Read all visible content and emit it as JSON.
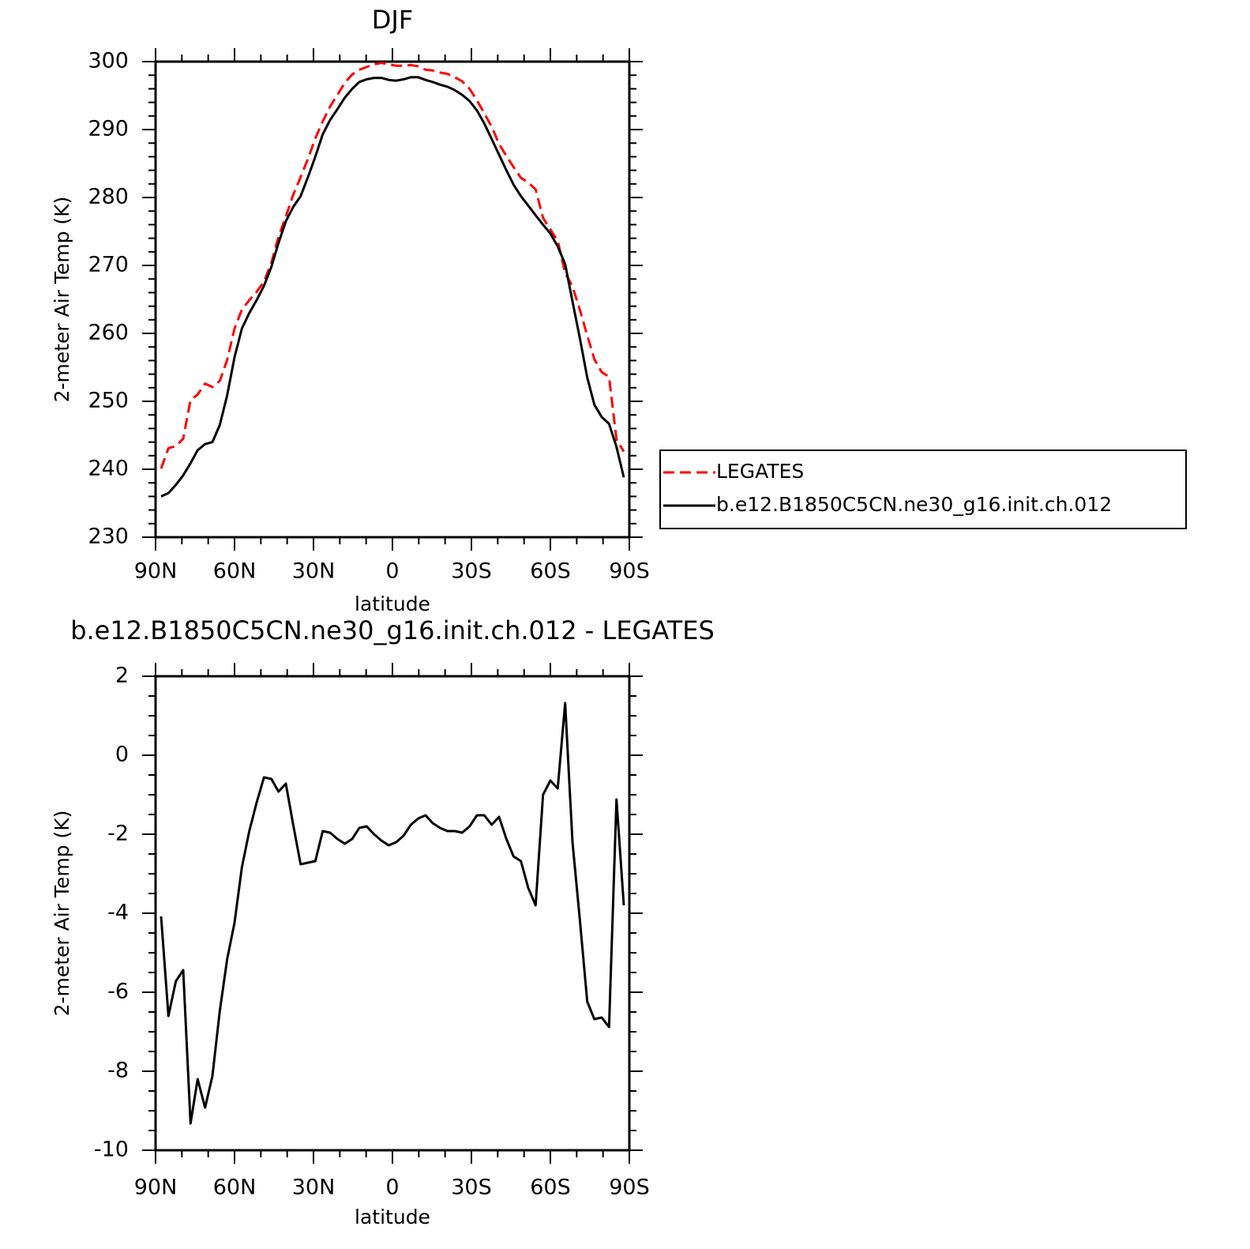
{
  "chart_data": [
    {
      "type": "line",
      "title": "DJF",
      "xlabel": "latitude",
      "ylabel": "2-meter Air Temp (K)",
      "x": [
        87.9,
        85.1,
        82.3,
        79.5,
        76.7,
        74,
        71.2,
        68.4,
        65.6,
        62.8,
        60,
        57.2,
        54.4,
        51.6,
        48.8,
        46,
        43.3,
        40.5,
        37.7,
        34.9,
        32.1,
        29.3,
        26.5,
        23.7,
        20.9,
        18.1,
        15.3,
        12.6,
        9.8,
        7,
        4.2,
        1.4,
        -1.4,
        -4.2,
        -7,
        -9.8,
        -12.6,
        -15.3,
        -18.1,
        -20.9,
        -23.7,
        -26.5,
        -29.3,
        -32.1,
        -34.9,
        -37.7,
        -40.5,
        -43.3,
        -46,
        -48.8,
        -51.6,
        -54.4,
        -57.2,
        -60,
        -62.8,
        -65.6,
        -68.4,
        -71.2,
        -74,
        -76.7,
        -79.5,
        -82.3,
        -85.1,
        -87.9
      ],
      "series": [
        {
          "name": "LEGATES",
          "color": "#ff0000",
          "dashed": true,
          "values": [
            240.1,
            243.1,
            243.4,
            244.5,
            250.2,
            251,
            252.6,
            252.1,
            253,
            256.1,
            260.7,
            263.5,
            264.9,
            266.1,
            267.6,
            270.4,
            274.2,
            277.2,
            280.4,
            283,
            285.7,
            288.7,
            291.2,
            293.4,
            295.1,
            296.9,
            298.1,
            298.8,
            299.2,
            299.6,
            299.8,
            299.6,
            299.4,
            299.4,
            299.5,
            299.3,
            298.8,
            298.7,
            298.4,
            298.2,
            297.7,
            297.1,
            296,
            294.3,
            292.4,
            290.4,
            287.9,
            286.1,
            284.5,
            282.9,
            282.2,
            281.2,
            277,
            275.3,
            273.6,
            268.9,
            266.9,
            263.5,
            259.7,
            256.2,
            254.3,
            253.6,
            244.4,
            242.6
          ]
        },
        {
          "name": "b.e12.B1850C5CN.ne30_g16.init.ch.012",
          "color": "#000000",
          "dashed": false,
          "values": [
            236,
            236.5,
            237.7,
            239.1,
            240.9,
            242.8,
            243.7,
            244,
            246.5,
            250.9,
            256.5,
            260.7,
            263,
            264.9,
            267,
            269.8,
            273.3,
            276.5,
            278.6,
            280.2,
            283,
            286,
            289.3,
            291.4,
            293,
            294.7,
            296,
            297,
            297.4,
            297.6,
            297.6,
            297.3,
            297.2,
            297.4,
            297.7,
            297.7,
            297.3,
            297,
            296.6,
            296.3,
            295.8,
            295.1,
            294.2,
            292.8,
            290.9,
            288.6,
            286.3,
            284,
            281.9,
            280.2,
            278.8,
            277.4,
            276,
            274.7,
            272.8,
            270.2,
            264.7,
            259.3,
            253.5,
            249.5,
            247.7,
            246.7,
            243.3,
            238.8
          ]
        }
      ],
      "xlim": [
        90,
        -90
      ],
      "xticks": [
        {
          "value": 90,
          "label": "90N"
        },
        {
          "value": 60,
          "label": "60N"
        },
        {
          "value": 30,
          "label": "30N"
        },
        0,
        {
          "value": -30,
          "label": "30S"
        },
        {
          "value": -60,
          "label": "60S"
        },
        {
          "value": -90,
          "label": "90S"
        }
      ],
      "ylim": [
        230,
        300
      ],
      "yticks": [
        230,
        240,
        250,
        260,
        270,
        280,
        290,
        300
      ],
      "legend": "right"
    },
    {
      "type": "line",
      "title": "b.e12.B1850C5CN.ne30_g16.init.ch.012 - LEGATES",
      "xlabel": "latitude",
      "ylabel": "2-meter Air Temp (K)",
      "x": [
        87.9,
        85.1,
        82.3,
        79.5,
        76.7,
        74,
        71.2,
        68.4,
        65.6,
        62.8,
        60,
        57.2,
        54.4,
        51.6,
        48.8,
        46,
        43.3,
        40.5,
        37.7,
        34.9,
        32.1,
        29.3,
        26.5,
        23.7,
        20.9,
        18.1,
        15.3,
        12.6,
        9.8,
        7,
        4.2,
        1.4,
        -1.4,
        -4.2,
        -7,
        -9.8,
        -12.6,
        -15.3,
        -18.1,
        -20.9,
        -23.7,
        -26.5,
        -29.3,
        -32.1,
        -34.9,
        -37.7,
        -40.5,
        -43.3,
        -46,
        -48.8,
        -51.6,
        -54.4,
        -57.2,
        -60,
        -62.8,
        -65.6,
        -68.4,
        -71.2,
        -74,
        -76.7,
        -79.5,
        -82.3,
        -85.1,
        -87.9
      ],
      "values": [
        -4.08,
        -6.6,
        -5.72,
        -5.44,
        -9.32,
        -8.2,
        -8.92,
        -8.12,
        -6.48,
        -5.16,
        -4.24,
        -2.84,
        -1.92,
        -1.2,
        -0.56,
        -0.6,
        -0.92,
        -0.72,
        -1.76,
        -2.76,
        -2.72,
        -2.68,
        -1.92,
        -1.96,
        -2.12,
        -2.24,
        -2.12,
        -1.84,
        -1.8,
        -2,
        -2.16,
        -2.28,
        -2.2,
        -2.04,
        -1.76,
        -1.6,
        -1.52,
        -1.72,
        -1.84,
        -1.92,
        -1.92,
        -1.96,
        -1.8,
        -1.52,
        -1.52,
        -1.76,
        -1.56,
        -2.12,
        -2.56,
        -2.68,
        -3.36,
        -3.8,
        -1,
        -0.64,
        -0.84,
        1.32,
        -2.2,
        -4.16,
        -6.24,
        -6.68,
        -6.64,
        -6.88,
        -1.12,
        -3.8
      ],
      "color": "#000000",
      "xlim": [
        90,
        -90
      ],
      "xticks": [
        {
          "value": 90,
          "label": "90N"
        },
        {
          "value": 60,
          "label": "60N"
        },
        {
          "value": 30,
          "label": "30N"
        },
        0,
        {
          "value": -30,
          "label": "30S"
        },
        {
          "value": -60,
          "label": "60S"
        },
        {
          "value": -90,
          "label": "90S"
        }
      ],
      "ylim": [
        -10,
        2
      ],
      "yticks": [
        -10,
        -8,
        -6,
        -4,
        -2,
        0,
        2
      ]
    }
  ]
}
